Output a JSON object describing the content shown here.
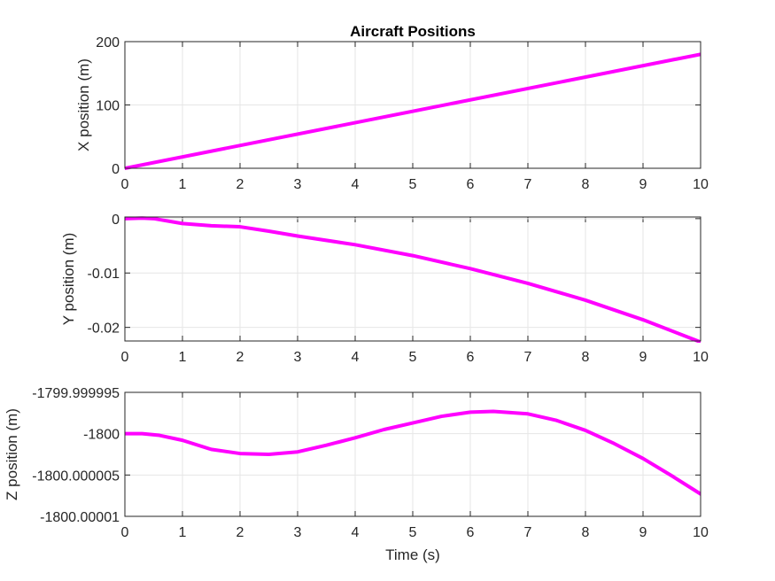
{
  "chart_data": [
    {
      "type": "line",
      "title": "Aircraft Positions",
      "xlabel": "",
      "ylabel": "X position (m)",
      "xlim": [
        0,
        10
      ],
      "ylim": [
        0,
        200
      ],
      "xticks": [
        "0",
        "1",
        "2",
        "3",
        "4",
        "5",
        "6",
        "7",
        "8",
        "9",
        "10"
      ],
      "yticks": [
        "0",
        "100",
        "200"
      ],
      "grid": true,
      "series": [
        {
          "color": "#ff00ff",
          "x": [
            0,
            10
          ],
          "y": [
            0,
            180
          ]
        }
      ]
    },
    {
      "type": "line",
      "title": "",
      "xlabel": "",
      "ylabel": "Y position (m)",
      "xlim": [
        0,
        10
      ],
      "ylim": [
        -0.0225,
        0.0003
      ],
      "xticks": [
        "0",
        "1",
        "2",
        "3",
        "4",
        "5",
        "6",
        "7",
        "8",
        "9",
        "10"
      ],
      "yticks": [
        "-0.02",
        "-0.01",
        "0"
      ],
      "grid": true,
      "series": [
        {
          "color": "#ff00ff",
          "x": [
            0,
            0.3,
            0.5,
            1,
            1.5,
            2,
            2.5,
            3,
            4,
            5,
            6,
            7,
            8,
            9,
            10
          ],
          "y": [
            0,
            0.0001,
            0,
            -0.0009,
            -0.0013,
            -0.0015,
            -0.0023,
            -0.0032,
            -0.0048,
            -0.0068,
            -0.0092,
            -0.0119,
            -0.015,
            -0.0186,
            -0.0227
          ]
        }
      ]
    },
    {
      "type": "line",
      "title": "",
      "xlabel": "Time (s)",
      "ylabel": "Z position (m)",
      "xlim": [
        0,
        10
      ],
      "ylim": [
        -1800.00001,
        -1799.999995
      ],
      "xticks": [
        "0",
        "1",
        "2",
        "3",
        "4",
        "5",
        "6",
        "7",
        "8",
        "9",
        "10"
      ],
      "yticks": [
        "-1800.00001",
        "-1800.000005",
        "-1800",
        "-1799.999995"
      ],
      "grid": true,
      "series": [
        {
          "color": "#ff00ff",
          "x": [
            0,
            0.3,
            0.6,
            1,
            1.5,
            2,
            2.5,
            3,
            3.5,
            4,
            4.5,
            5,
            5.5,
            6,
            6.4,
            7,
            7.5,
            8,
            8.5,
            9,
            9.5,
            10
          ],
          "y": [
            -1800,
            -1800,
            -1800.0000002,
            -1800.0000008,
            -1800.0000019,
            -1800.0000024,
            -1800.0000025,
            -1800.0000022,
            -1800.0000014,
            -1800.0000005,
            -1799.9999995,
            -1799.9999987,
            -1799.9999979,
            -1799.9999974,
            -1799.9999973,
            -1799.9999976,
            -1799.9999984,
            -1799.9999996,
            -1800.0000012,
            -1800.000003,
            -1800.0000051,
            -1800.0000073
          ]
        }
      ]
    }
  ]
}
